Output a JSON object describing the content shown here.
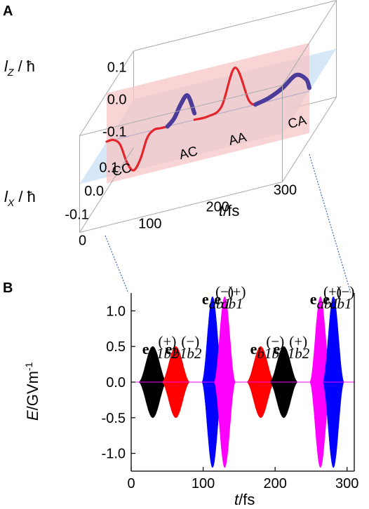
{
  "chart_data": [
    {
      "panel": "A",
      "type": "line",
      "title": "",
      "zlabel": "l_Z / ħ",
      "ylabel": "l_X / ħ",
      "xlabel": "t/fs",
      "t_ticks": [
        "0",
        "100",
        "200",
        "300"
      ],
      "z_ticks": [
        "0.1",
        "0.0",
        "-0.1"
      ],
      "x_ticks": [
        "0.1",
        "0.0",
        "-0.1"
      ],
      "zlim": [
        -0.15,
        0.15
      ],
      "tlim": [
        0,
        300
      ],
      "region_labels": [
        "CC",
        "AC",
        "AA",
        "CA"
      ],
      "series": [
        {
          "color": "#e3262c",
          "t": [
            0,
            10,
            20,
            30,
            40,
            50,
            60,
            70,
            80,
            90
          ],
          "lz": [
            0.0,
            0.0,
            -0.02,
            -0.08,
            -0.11,
            -0.08,
            -0.02,
            0.0,
            0.0,
            0.0
          ]
        },
        {
          "color": "#4b3c9a",
          "t": [
            90,
            100,
            110,
            120,
            130
          ],
          "lz": [
            0.0,
            0.02,
            0.06,
            0.08,
            0.02
          ]
        },
        {
          "color": "#e3262c",
          "t": [
            130,
            150,
            170,
            190,
            210,
            220
          ],
          "lz": [
            0.0,
            0.0,
            0.02,
            0.13,
            0.02,
            0.0
          ]
        },
        {
          "color": "#4b3c9a",
          "t": [
            220,
            240,
            260,
            280,
            295,
            300
          ],
          "lz": [
            0.0,
            0.01,
            0.03,
            0.06,
            0.04,
            0.01
          ]
        }
      ]
    },
    {
      "panel": "B",
      "type": "area",
      "title": "",
      "xlabel": "t/fs",
      "ylabel": "E/GVm⁻¹",
      "x_ticks": [
        "0",
        "100",
        "200",
        "300"
      ],
      "y_ticks": [
        "1.0",
        "0.5",
        "0.0",
        "-0.5",
        "-1.0"
      ],
      "xlim": [
        0,
        310
      ],
      "ylim": [
        -1.25,
        1.25
      ],
      "pulses": [
        {
          "center": 30,
          "width": 40,
          "amplitude": 0.5,
          "color": "#000000",
          "label_vec": "e",
          "label_sub": "b1b2",
          "label_sup": "(+)"
        },
        {
          "center": 62,
          "width": 40,
          "amplitude": 0.5,
          "color": "#ff0000",
          "label_vec": "e",
          "label_sub": "b1b2",
          "label_sup": "(−)"
        },
        {
          "center": 113,
          "width": 30,
          "amplitude": 1.2,
          "color": "#0000ff",
          "label_vec": "e",
          "label_sub": "ab1",
          "label_sup": "(−)"
        },
        {
          "center": 130,
          "width": 30,
          "amplitude": 1.2,
          "color": "#ff00ff",
          "label_vec": "e",
          "label_sub": "ab1",
          "label_sup": "(+)"
        },
        {
          "center": 180,
          "width": 40,
          "amplitude": 0.5,
          "color": "#ff0000",
          "label_vec": "e",
          "label_sub": "b1b2",
          "label_sup": "(−)"
        },
        {
          "center": 212,
          "width": 40,
          "amplitude": 0.5,
          "color": "#000000",
          "label_vec": "e",
          "label_sub": "b1b2",
          "label_sup": "(+)"
        },
        {
          "center": 263,
          "width": 30,
          "amplitude": 1.2,
          "color": "#ff00ff",
          "label_vec": "e",
          "label_sub": "ab1",
          "label_sup": "(+)"
        },
        {
          "center": 281,
          "width": 30,
          "amplitude": 1.2,
          "color": "#0000ff",
          "label_vec": "e",
          "label_sub": "ab1",
          "label_sup": "(−)"
        }
      ]
    }
  ],
  "labels": {
    "panel_a": "A",
    "panel_b": "B",
    "lz_l": "l",
    "lz_sub": "Z",
    "lz_rest": " / ħ",
    "lx_l": "l",
    "lx_sub": "X",
    "lx_rest": " / ħ",
    "tfs_a": "t",
    "tfs_a_rest": "/fs",
    "e_label": "E",
    "e_rest": "/GVm",
    "e_exp": "-1",
    "tfs_b": "t",
    "tfs_b_rest": "/fs"
  }
}
